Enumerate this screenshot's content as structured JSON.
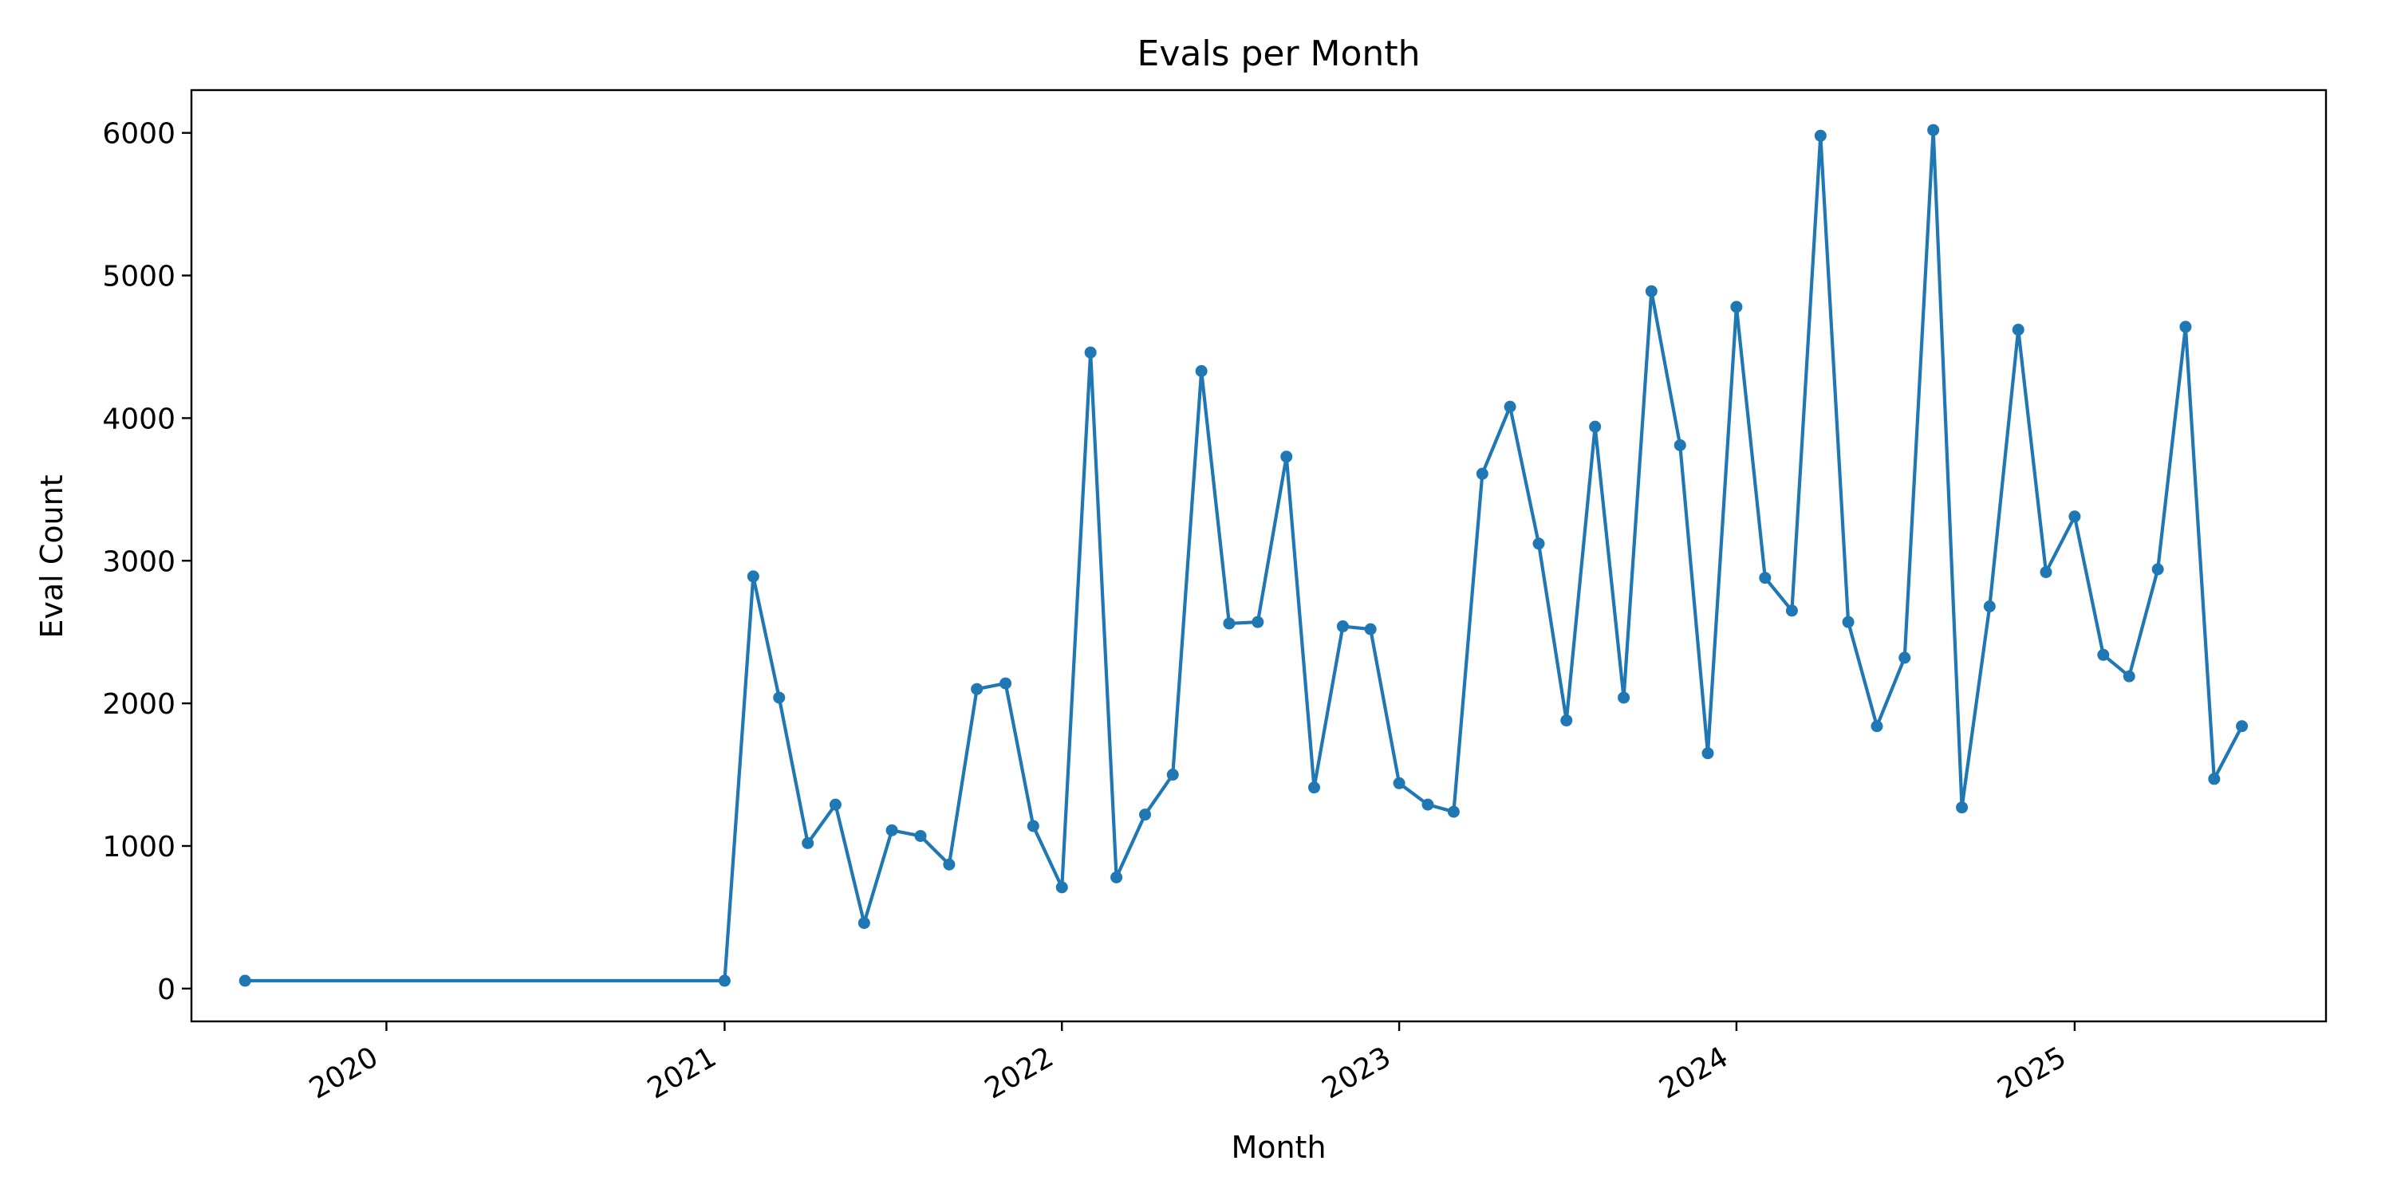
{
  "chart_data": {
    "type": "line",
    "title": "Evals per Month",
    "xlabel": "Month",
    "ylabel": "Eval Count",
    "x_tick_labels": [
      "2020",
      "2021",
      "2022",
      "2023",
      "2024",
      "2025"
    ],
    "y_tick_labels": [
      "0",
      "1000",
      "2000",
      "3000",
      "4000",
      "5000",
      "6000"
    ],
    "ylim": [
      -230,
      6300
    ],
    "xlim": [
      "2019-06-04",
      "2025-09-30"
    ],
    "grid": false,
    "legend": "none",
    "colors": {
      "line": "#1f77b4",
      "axes": "#000000",
      "background": "#ffffff"
    },
    "series": [
      {
        "x": [
          "2019-08-01",
          "2021-01-01",
          "2021-02-01",
          "2021-03-01",
          "2021-04-01",
          "2021-05-01",
          "2021-06-01",
          "2021-07-01",
          "2021-08-01",
          "2021-09-01",
          "2021-10-01",
          "2021-11-01",
          "2021-12-01",
          "2022-01-01",
          "2022-02-01",
          "2022-03-01",
          "2022-04-01",
          "2022-05-01",
          "2022-06-01",
          "2022-07-01",
          "2022-08-01",
          "2022-09-01",
          "2022-10-01",
          "2022-11-01",
          "2022-12-01",
          "2023-01-01",
          "2023-02-01",
          "2023-03-01",
          "2023-04-01",
          "2023-05-01",
          "2023-06-01",
          "2023-07-01",
          "2023-08-01",
          "2023-09-01",
          "2023-10-01",
          "2023-11-01",
          "2023-12-01",
          "2024-01-01",
          "2024-02-01",
          "2024-03-01",
          "2024-04-01",
          "2024-05-01",
          "2024-06-01",
          "2024-07-01",
          "2024-08-01",
          "2024-09-01",
          "2024-10-01",
          "2024-11-01",
          "2024-12-01",
          "2025-01-01",
          "2025-02-01",
          "2025-03-01",
          "2025-04-01",
          "2025-05-01",
          "2025-06-01",
          "2025-07-01"
        ],
        "values": [
          55,
          55,
          2890,
          2040,
          1020,
          1290,
          460,
          1110,
          1070,
          870,
          2100,
          2140,
          1140,
          710,
          4460,
          780,
          1220,
          1500,
          4330,
          2560,
          2570,
          3730,
          1410,
          2540,
          2520,
          1440,
          1290,
          1240,
          3610,
          4080,
          3120,
          1880,
          3940,
          2040,
          4890,
          3810,
          1650,
          4780,
          2880,
          2650,
          5980,
          2570,
          1840,
          2320,
          6020,
          1270,
          2680,
          4620,
          2920,
          3310,
          2340,
          2190,
          2940,
          4640,
          1470,
          1840
        ]
      }
    ]
  }
}
